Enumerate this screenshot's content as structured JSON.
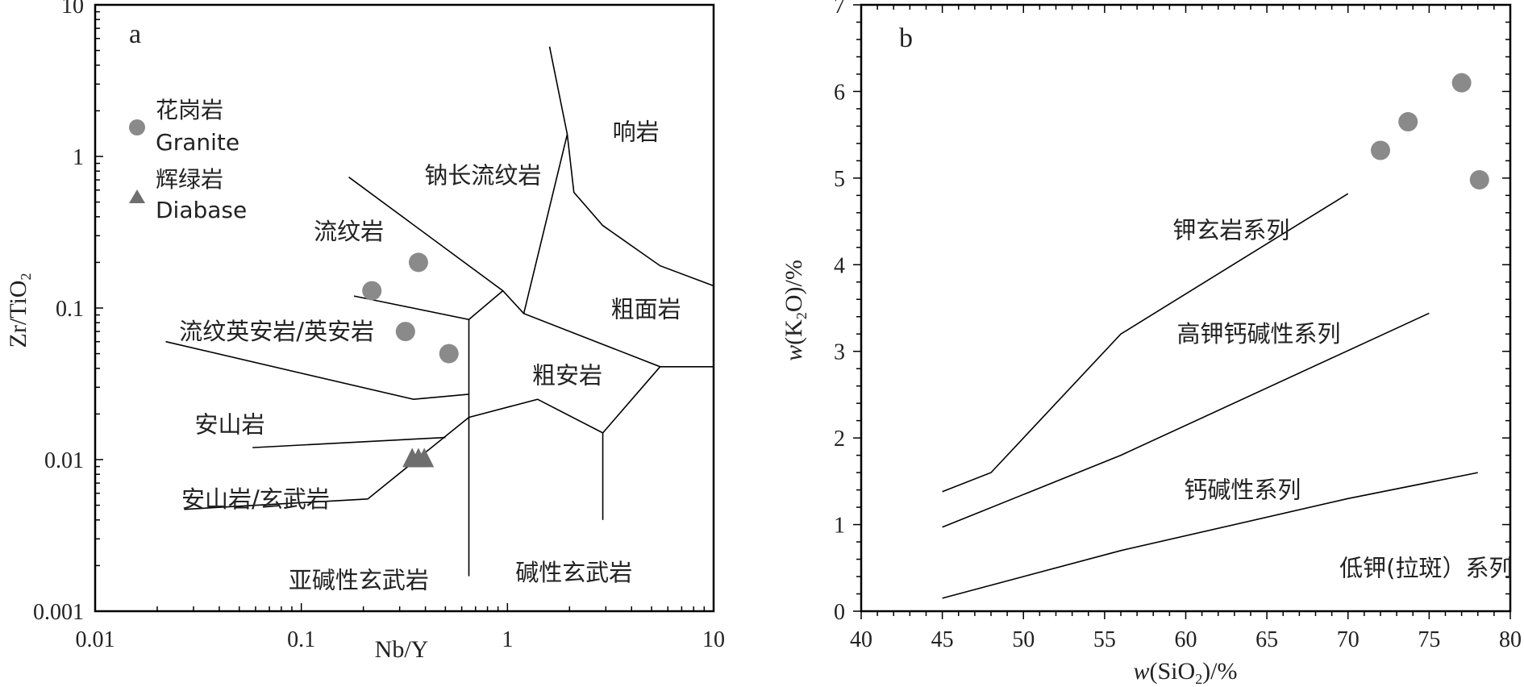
{
  "colors": {
    "granite": "#8a8a8a",
    "diabase": "#6e6e6e",
    "line": "#000000"
  },
  "chart_data": [
    {
      "type": "scatter",
      "panel": "a",
      "xlabel": "Nb/Y",
      "ylabel": "Zr/TiO2",
      "xscale": "log",
      "yscale": "log",
      "xlim": [
        0.01,
        10
      ],
      "ylim": [
        0.001,
        10
      ],
      "xticks": [
        "0.01",
        "0.1",
        "1",
        "10"
      ],
      "yticks": [
        "0.001",
        "0.01",
        "0.1",
        "1",
        "10"
      ],
      "legend": [
        {
          "cn": "花岗岩",
          "en": "Granite",
          "marker": "circle"
        },
        {
          "cn": "辉绿岩",
          "en": "Diabase",
          "marker": "triangle"
        }
      ],
      "series": [
        {
          "marker": "circle",
          "points": [
            [
              0.37,
              0.2
            ],
            [
              0.22,
              0.13
            ],
            [
              0.32,
              0.07
            ],
            [
              0.52,
              0.05
            ]
          ]
        },
        {
          "marker": "triangle",
          "points": [
            [
              0.345,
              0.0102
            ],
            [
              0.37,
              0.0102
            ],
            [
              0.395,
              0.0102
            ]
          ]
        }
      ],
      "region_labels": [
        {
          "text": "响岩",
          "x": 4.2,
          "y": 1.45
        },
        {
          "text": "钠长流纹岩",
          "x": 0.76,
          "y": 0.75
        },
        {
          "text": "流纹岩",
          "x": 0.17,
          "y": 0.32
        },
        {
          "text": "粗面岩",
          "x": 4.7,
          "y": 0.098
        },
        {
          "text": "流纹英安岩/英安岩",
          "x": 0.076,
          "y": 0.07
        },
        {
          "text": "粗安岩",
          "x": 1.95,
          "y": 0.036
        },
        {
          "text": "安山岩",
          "x": 0.045,
          "y": 0.017
        },
        {
          "text": "安山岩/玄武岩",
          "x": 0.06,
          "y": 0.0055
        },
        {
          "text": "亚碱性玄武岩",
          "x": 0.19,
          "y": 0.0016
        },
        {
          "text": "碱性玄武岩",
          "x": 2.1,
          "y": 0.0018
        }
      ],
      "boundaries": [
        [
          [
            1.6,
            5.3
          ],
          [
            1.95,
            1.4
          ],
          [
            2.1,
            0.58
          ],
          [
            2.9,
            0.35
          ],
          [
            5.5,
            0.19
          ],
          [
            10,
            0.14
          ]
        ],
        [
          [
            1.95,
            1.4
          ],
          [
            1.2,
            0.092
          ]
        ],
        [
          [
            0.17,
            0.73
          ],
          [
            0.95,
            0.13
          ],
          [
            1.2,
            0.092
          ],
          [
            5.5,
            0.041
          ],
          [
            10,
            0.041
          ]
        ],
        [
          [
            0.18,
            0.12
          ],
          [
            0.65,
            0.084
          ],
          [
            0.95,
            0.13
          ]
        ],
        [
          [
            0.65,
            0.084
          ],
          [
            0.65,
            0.0017
          ]
        ],
        [
          [
            0.022,
            0.06
          ],
          [
            0.35,
            0.025
          ],
          [
            0.65,
            0.027
          ]
        ],
        [
          [
            0.058,
            0.012
          ],
          [
            0.5,
            0.014
          ]
        ],
        [
          [
            0.027,
            0.0047
          ],
          [
            0.21,
            0.0055
          ],
          [
            0.65,
            0.019
          ],
          [
            1.4,
            0.025
          ],
          [
            2.9,
            0.015
          ],
          [
            5.5,
            0.041
          ]
        ],
        [
          [
            2.9,
            0.015
          ],
          [
            2.9,
            0.004
          ]
        ]
      ]
    },
    {
      "type": "scatter",
      "panel": "b",
      "xlabel": "w(SiO2)/%",
      "ylabel": "w(K2O)/%",
      "xlim": [
        40,
        80
      ],
      "ylim": [
        0,
        7
      ],
      "xticks": [
        "40",
        "45",
        "50",
        "55",
        "60",
        "65",
        "70",
        "75",
        "80"
      ],
      "yticks": [
        "0",
        "1",
        "2",
        "3",
        "4",
        "5",
        "6",
        "7"
      ],
      "series": [
        {
          "marker": "circle",
          "points": [
            [
              72,
              5.32
            ],
            [
              73.7,
              5.65
            ],
            [
              77,
              6.1
            ],
            [
              78.1,
              4.98
            ]
          ]
        }
      ],
      "region_labels": [
        {
          "text": "钾玄岩系列",
          "x": 62.8,
          "y": 4.4
        },
        {
          "text": "高钾钙碱性系列",
          "x": 64.5,
          "y": 3.2
        },
        {
          "text": "钙碱性系列",
          "x": 63.5,
          "y": 1.4
        },
        {
          "text": "低钾(拉斑）系列",
          "x": 74.8,
          "y": 0.5
        }
      ],
      "boundaries": [
        [
          [
            45,
            1.38
          ],
          [
            48,
            1.6
          ],
          [
            56,
            3.2
          ],
          [
            70,
            4.82
          ]
        ],
        [
          [
            45,
            0.97
          ],
          [
            56,
            1.8
          ],
          [
            75,
            3.44
          ]
        ],
        [
          [
            45,
            0.15
          ],
          [
            56,
            0.7
          ],
          [
            70,
            1.3
          ],
          [
            78,
            1.6
          ]
        ]
      ]
    }
  ]
}
